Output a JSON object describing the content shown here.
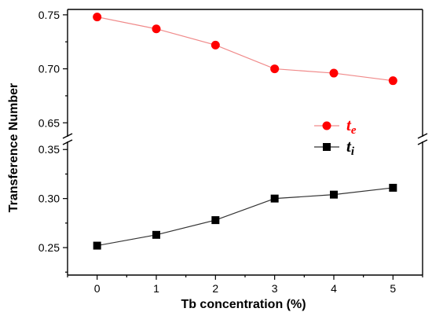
{
  "chart_data": {
    "type": "line",
    "xlabel": "Tb concentration (%)",
    "ylabel": "Transference Number",
    "x": [
      0,
      1,
      2,
      3,
      4,
      5
    ],
    "x_ticks": [
      "0",
      "1",
      "2",
      "3",
      "4",
      "5"
    ],
    "xlim": [
      -0.5,
      5.5
    ],
    "y_break": true,
    "ylim_upper": [
      0.64,
      0.755
    ],
    "ylim_lower": [
      0.222,
      0.355
    ],
    "y_ticks_upper": [
      "0.75",
      "0.70",
      "0.65"
    ],
    "y_ticks_lower": [
      "0.35",
      "0.30",
      "0.25"
    ],
    "grid": false,
    "legend_position": "right",
    "series": [
      {
        "name": "t",
        "subscript": "e",
        "values": [
          0.748,
          0.737,
          0.722,
          0.7,
          0.696,
          0.689
        ],
        "marker": "circle",
        "color": "#ff0000",
        "line_color": "#f08a8a",
        "segment": "upper"
      },
      {
        "name": "t",
        "subscript": "i",
        "values": [
          0.252,
          0.263,
          0.278,
          0.3,
          0.304,
          0.311
        ],
        "marker": "square",
        "color": "#000000",
        "line_color": "#333333",
        "segment": "lower"
      }
    ]
  }
}
